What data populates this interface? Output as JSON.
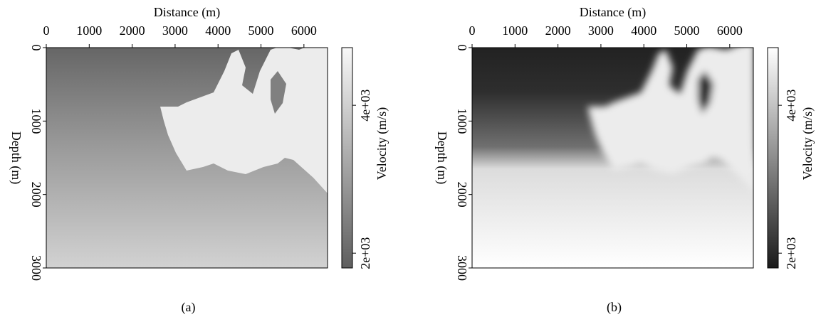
{
  "chart_data": [
    {
      "type": "heatmap",
      "xlabel": "Distance (m)",
      "ylabel": "Depth (m)",
      "colorbar_label": "Velocity (m/s)",
      "caption": "(a)",
      "xlim": [
        0,
        6550
      ],
      "ylim": [
        0,
        3000
      ],
      "yinvert": true,
      "xticks": [
        0,
        1000,
        2000,
        3000,
        4000,
        5000,
        6000
      ],
      "yticks": [
        0,
        1000,
        2000,
        3000
      ],
      "clim": [
        1800,
        4780
      ],
      "cticks": [
        {
          "value": 2000,
          "label": "2e+03"
        },
        {
          "value": 4000,
          "label": "4e+03"
        }
      ],
      "colormap": [
        "#5e5e5e",
        "#f8f8f8"
      ]
    },
    {
      "type": "heatmap",
      "xlabel": "Distance (m)",
      "ylabel": "Depth (m)",
      "colorbar_label": "Velocity (m/s)",
      "caption": "(b)",
      "xlim": [
        0,
        6550
      ],
      "ylim": [
        0,
        3000
      ],
      "yinvert": true,
      "xticks": [
        0,
        1000,
        2000,
        3000,
        4000,
        5000,
        6000
      ],
      "yticks": [
        0,
        1000,
        2000,
        3000
      ],
      "clim": [
        1800,
        4780
      ],
      "cticks": [
        {
          "value": 2000,
          "label": "2e+03"
        },
        {
          "value": 4000,
          "label": "4e+03"
        }
      ],
      "colormap": [
        "#1a1a1a",
        "#ffffff"
      ]
    }
  ]
}
